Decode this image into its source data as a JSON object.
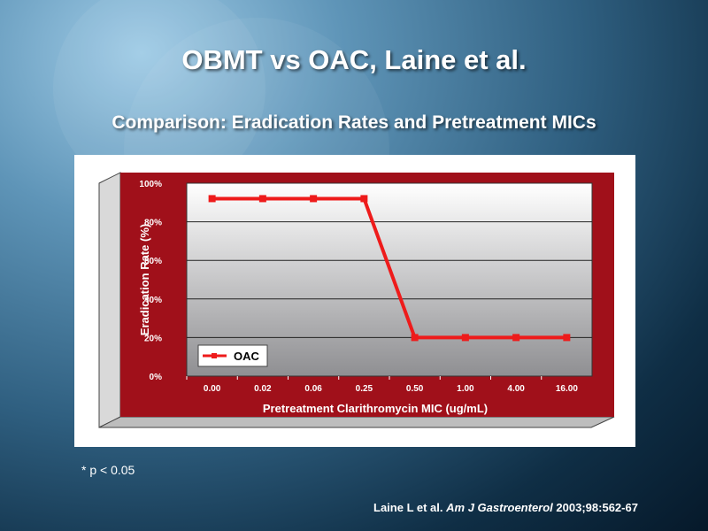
{
  "slide": {
    "title": "OBMT vs OAC, Laine et al.",
    "subtitle": "Comparison: Eradication Rates and Pretreatment MICs",
    "footnote": "* p < 0.05",
    "citation": {
      "authors": "Laine L et al.",
      "journal": "Am J Gastroenterol",
      "details": "2003;98:562-67"
    }
  },
  "colors": {
    "frame": "#a0101a",
    "series": "#ee1b1b",
    "plot_top": "#ffffff",
    "plot_bottom": "#8f8f92"
  },
  "chart_data": {
    "type": "line",
    "categories": [
      "0.00",
      "0.02",
      "0.06",
      "0.25",
      "0.50",
      "1.00",
      "4.00",
      "16.00"
    ],
    "series": [
      {
        "name": "OAC",
        "values": [
          92,
          92,
          92,
          92,
          20,
          20,
          20,
          20
        ]
      }
    ],
    "xlabel": "Pretreatment Clarithromycin MIC (ug/mL)",
    "ylabel": "Eradication Rate (%)",
    "yticks": [
      "0%",
      "20%",
      "40%",
      "60%",
      "80%",
      "100%"
    ],
    "ylim": [
      0,
      100
    ],
    "grid": true,
    "legend_position": "bottom-left"
  }
}
